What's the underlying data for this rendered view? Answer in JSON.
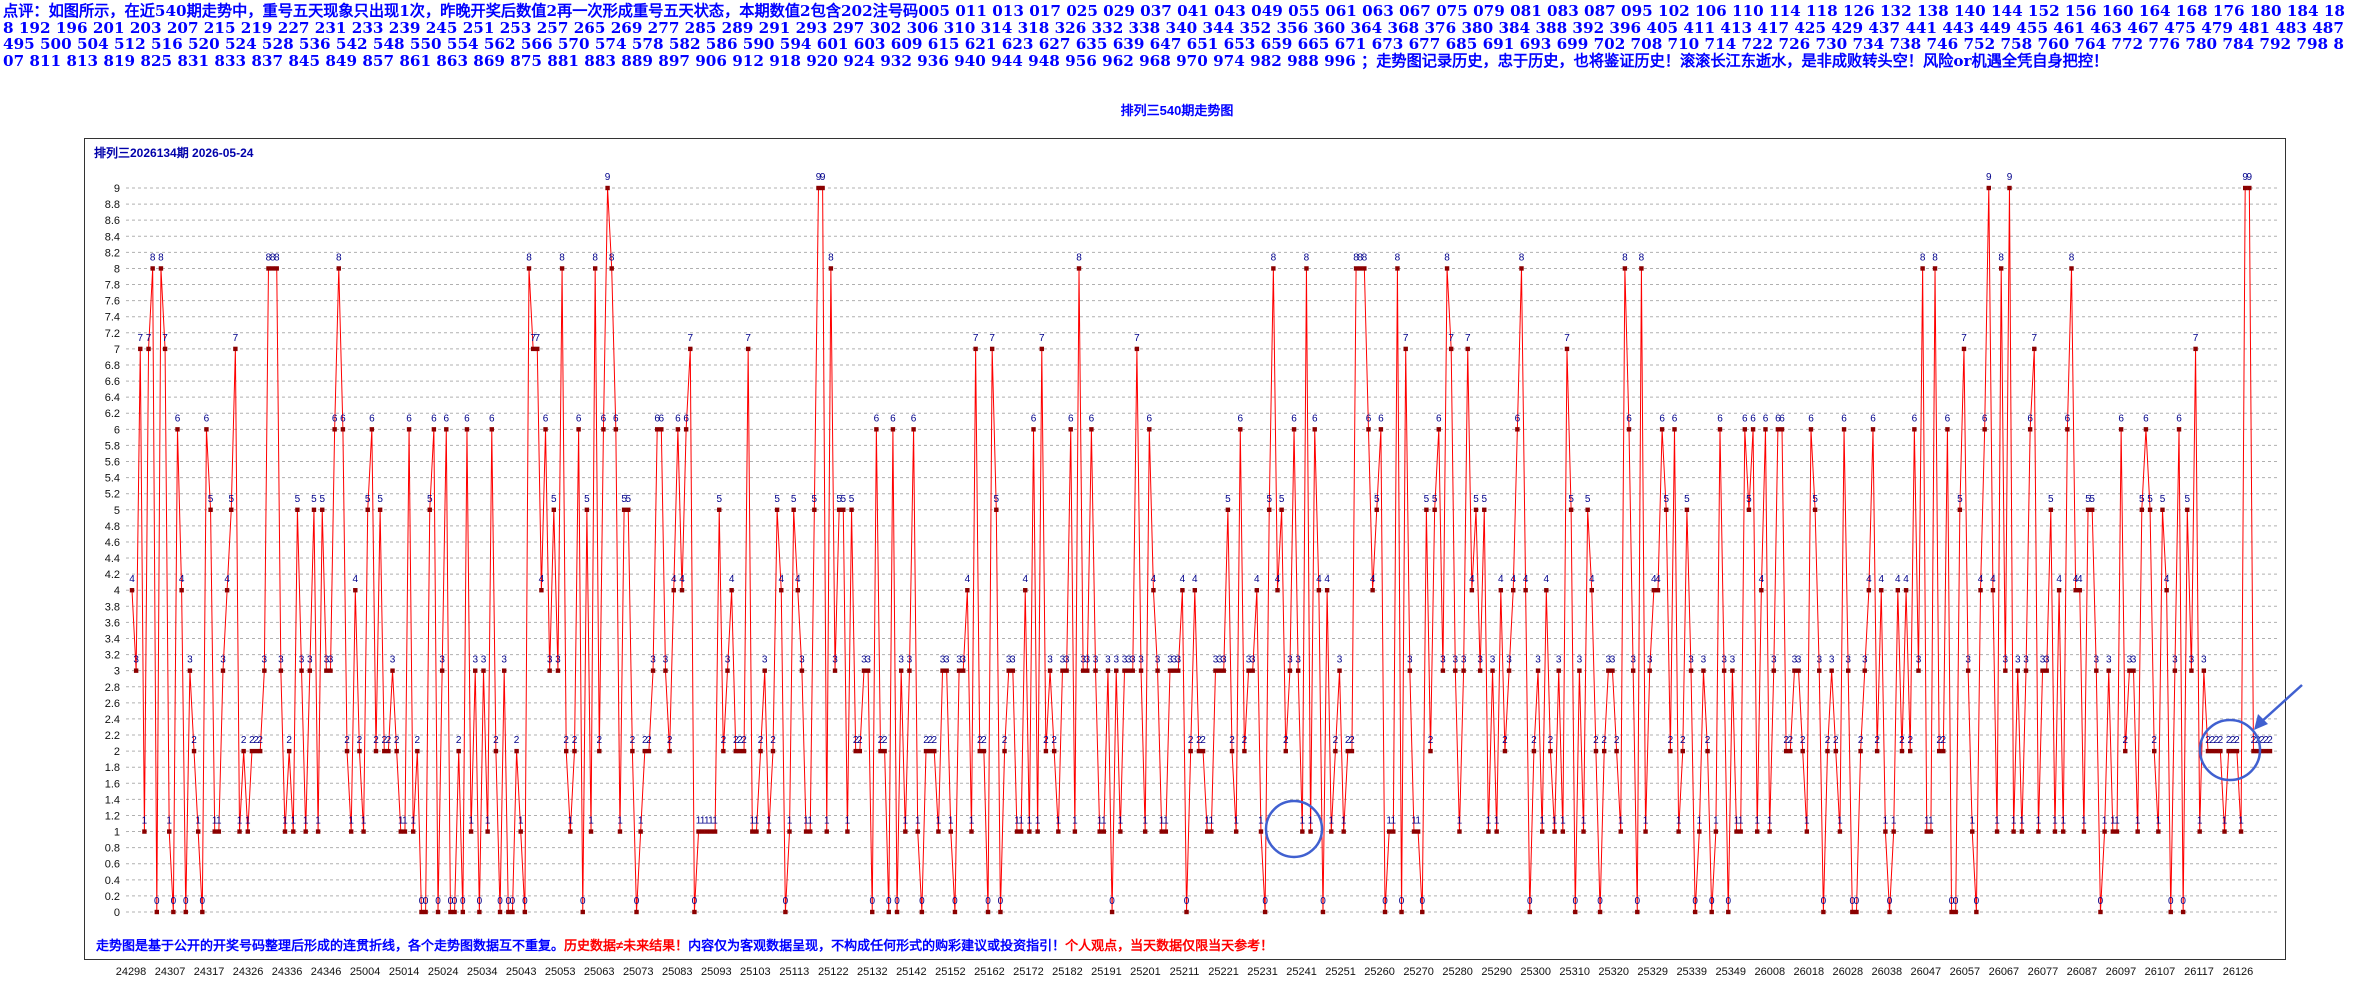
{
  "commentary": "点评：如图所示，在近540期走势中，重号五天现象只出现1次，昨晚开奖后数值2再一次形成重号五天状态，本期数值2包含202注号码005 011 013 017 025 029 037 041 043 049 055 061 063 067 075 079 081 083 087 095 102 106 110 114 118 126 132 138 140 144 152 156 160 164 168 176 180 184 188 192 196 201 203 207 215 219 227 231 233 239 245 251 253 257 265 269 277 285 289 291 293 297 302 306 310 314 318 326 332 338 340 344 352 356 360 364 368 376 380 384 388 392 396 405 411 413 417 425 429 437 441 443 449 455 461 463 467 475 479 481 483 487 495 500 504 512 516 520 524 528 536 542 548 550 554 562 566 570 574 578 582 586 590 594 601 603 609 615 621 623 627 635 639 647 651 653 659 665 671 673 677 685 691 693 699 702 708 710 714 722 726 730 734 738 746 752 758 760 764 772 776 780 784 792 798 807 811 813 819 825 831 833 837 845 849 857 861 863 869 875 881 883 889 897 906 912 918 920 924 932 936 940 944 948 956 962 968 970 974 982 988 996 ；走势图记录历史，忠于历史，也将鉴证历史！滚滚长江东逝水，是非成败转头空！风险or机遇全凭自身把控！",
  "chart_title": "排列三540期走势图",
  "period_label": "排列三2026134期  2026-05-24",
  "footer": {
    "part1": "走势图是基于公开的开奖号码整理后形成的连贯折线，各个走势图数据互不重复。",
    "part2": "历史数据≠未来结果！",
    "part3": "内容仅为客观数据呈现，不构成任何形式的购彩建议或投资指引！",
    "part4": "个人观点，当天数据仅限当天参考！"
  },
  "colors": {
    "line": "#ff0000",
    "point": "#8b0000",
    "value_label": "#00008b",
    "grid": "#b0b0b0",
    "highlight": "#4060d0",
    "text_blue": "#0000ff"
  },
  "chart_data": {
    "type": "line",
    "ylim": [
      0,
      9.2
    ],
    "yticks": [
      "0",
      "0.2",
      "0.4",
      "0.6",
      "0.8",
      "1",
      "1.2",
      "1.4",
      "1.6",
      "1.8",
      "2",
      "2.2",
      "2.4",
      "2.6",
      "2.8",
      "3",
      "3.2",
      "3.4",
      "3.6",
      "3.8",
      "4",
      "4.2",
      "4.4",
      "4.6",
      "4.8",
      "5",
      "5.2",
      "5.4",
      "5.6",
      "5.8",
      "6",
      "6.2",
      "6.4",
      "6.6",
      "6.8",
      "7",
      "7.2",
      "7.4",
      "7.6",
      "7.8",
      "8",
      "8.2",
      "8.4",
      "8.6",
      "8.8",
      "9"
    ],
    "x_tick_labels": [
      "24298",
      "24307",
      "24317",
      "24326",
      "24336",
      "24346",
      "25004",
      "25014",
      "25024",
      "25034",
      "25043",
      "25053",
      "25063",
      "25073",
      "25083",
      "25093",
      "25103",
      "25113",
      "25122",
      "25132",
      "25142",
      "25152",
      "25162",
      "25172",
      "25182",
      "25191",
      "25201",
      "25211",
      "25221",
      "25231",
      "25241",
      "25251",
      "25260",
      "25270",
      "25280",
      "25290",
      "25300",
      "25310",
      "25320",
      "25329",
      "25339",
      "25349",
      "26008",
      "26018",
      "26028",
      "26038",
      "26047",
      "26057",
      "26067",
      "26077",
      "26087",
      "26097",
      "26107",
      "26117",
      "26126"
    ],
    "grid": true,
    "values": [
      4,
      3,
      7,
      1,
      7,
      8,
      0,
      8,
      7,
      1,
      0,
      6,
      4,
      0,
      3,
      2,
      1,
      0,
      6,
      5,
      1,
      1,
      3,
      4,
      5,
      7,
      1,
      2,
      1,
      2,
      2,
      2,
      3,
      8,
      8,
      8,
      3,
      1,
      2,
      1,
      5,
      3,
      1,
      3,
      5,
      1,
      5,
      3,
      3,
      6,
      8,
      6,
      2,
      1,
      4,
      2,
      1,
      5,
      6,
      2,
      5,
      2,
      2,
      3,
      2,
      1,
      1,
      6,
      1,
      2,
      0,
      0,
      5,
      6,
      0,
      3,
      6,
      0,
      0,
      2,
      0,
      6,
      1,
      3,
      0,
      3,
      1,
      6,
      2,
      0,
      3,
      0,
      0,
      2,
      1,
      0,
      8,
      7,
      7,
      4,
      6,
      3,
      5,
      3,
      8,
      2,
      1,
      2,
      6,
      0,
      5,
      1,
      8,
      2,
      6,
      9,
      8,
      6,
      1,
      5,
      5,
      2,
      0,
      1,
      2,
      2,
      3,
      6,
      6,
      3,
      2,
      4,
      6,
      4,
      6,
      7,
      0,
      1,
      1,
      1,
      1,
      1,
      5,
      2,
      3,
      4,
      2,
      2,
      2,
      7,
      1,
      1,
      2,
      3,
      1,
      2,
      5,
      4,
      0,
      1,
      5,
      4,
      3,
      1,
      1,
      5,
      9,
      9,
      1,
      8,
      3,
      5,
      5,
      1,
      5,
      2,
      2,
      3,
      3,
      0,
      6,
      2,
      2,
      0,
      6,
      0,
      3,
      1,
      3,
      6,
      1,
      0,
      2,
      2,
      2,
      1,
      3,
      3,
      1,
      0,
      3,
      3,
      4,
      1,
      7,
      2,
      2,
      0,
      7,
      5,
      0,
      2,
      3,
      3,
      1,
      1,
      4,
      1,
      6,
      1,
      7,
      2,
      3,
      2,
      1,
      3,
      3,
      6,
      1,
      8,
      3,
      3,
      6,
      3,
      1,
      1,
      3,
      0,
      3,
      1,
      3,
      3,
      3,
      7,
      3,
      1,
      6,
      4,
      3,
      1,
      1,
      3,
      3,
      3,
      4,
      0,
      2,
      4,
      2,
      2,
      1,
      1,
      3,
      3,
      3,
      5,
      2,
      1,
      6,
      2,
      3,
      3,
      4,
      1,
      0,
      5,
      8,
      4,
      5,
      2,
      3,
      6,
      3,
      1,
      8,
      1,
      6,
      4,
      0,
      4,
      1,
      2,
      3,
      1,
      2,
      2,
      8,
      8,
      8,
      6,
      4,
      5,
      6,
      0,
      1,
      1,
      8,
      0,
      7,
      3,
      1,
      1,
      0,
      5,
      2,
      5,
      6,
      3,
      8,
      7,
      3,
      1,
      3,
      7,
      4,
      5,
      3,
      5,
      1,
      3,
      1,
      4,
      2,
      3,
      4,
      6,
      8,
      4,
      0,
      2,
      3,
      1,
      4,
      2,
      1,
      3,
      1,
      7,
      5,
      0,
      3,
      1,
      5,
      4,
      2,
      0,
      2,
      3,
      3,
      2,
      1,
      8,
      6,
      3,
      0,
      8,
      1,
      3,
      4,
      4,
      6,
      5,
      2,
      6,
      1,
      2,
      5,
      3,
      0,
      1,
      3,
      2,
      0,
      1,
      6,
      3,
      0,
      3,
      1,
      1,
      6,
      5,
      6,
      1,
      4,
      6,
      1,
      3,
      6,
      6,
      2,
      2,
      3,
      3,
      2,
      1,
      6,
      5,
      3,
      0,
      2,
      3,
      2,
      1,
      6,
      3,
      0,
      0,
      2,
      3,
      4,
      6,
      2,
      4,
      1,
      0,
      1,
      4,
      2,
      4,
      2,
      6,
      3,
      8,
      1,
      1,
      8,
      2,
      2,
      6,
      0,
      0,
      5,
      7,
      3,
      1,
      0,
      4,
      6,
      9,
      4,
      1,
      8,
      3,
      9,
      1,
      3,
      1,
      3,
      6,
      7,
      1,
      3,
      3,
      5,
      1,
      4,
      1,
      6,
      8,
      4,
      4,
      1,
      5,
      5,
      3,
      0,
      1,
      3,
      1,
      1,
      6,
      2,
      3,
      3,
      1,
      5,
      6,
      5,
      2,
      1,
      5,
      4,
      0,
      3,
      6,
      0,
      5,
      3,
      7,
      1,
      3,
      2,
      2,
      2,
      2,
      1,
      2,
      2,
      2,
      1,
      9,
      9,
      2,
      2,
      2,
      2,
      2
    ]
  }
}
